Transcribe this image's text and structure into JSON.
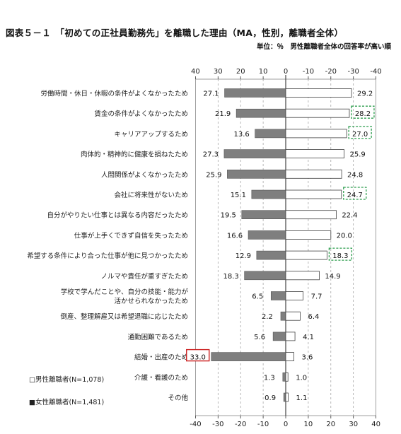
{
  "title": "図表５－１　「初めての正社員勤務先」を離職した理由（MA，性別，離職者全体）",
  "subtitle": "単位：％　男性離職者全体の回答率が高い順",
  "colors": {
    "female_bar": "#7f7f7f",
    "male_bar": "#ffffff",
    "bar_stroke": "#404040",
    "green_highlight": "#2e9e4f",
    "red_highlight": "#cc2222"
  },
  "chart_data": {
    "type": "bar",
    "orientation": "horizontal-butterfly",
    "categories": [
      "労働時間・休日・休暇の条件がよくなかったため",
      "賃金の条件がよくなかったため",
      "キャリアアップするため",
      "肉体的・精神的に健康を損ねたため",
      "人間関係がよくなかったため",
      "会社に将来性がないため",
      "自分がやりたい仕事とは異なる内容だったため",
      "仕事が上手くできず自信を失ったため",
      "希望する条件により合った仕事が他に見つかったため",
      "ノルマや責任が重すぎたため",
      "学校で学んだことや、自分の技能・能力が|活かせられなかったため",
      "倒産、整理解雇又は希望退職に応じたため",
      "通勤困難であるため",
      "結婚・出産のため",
      "介護・看護のため",
      "その他"
    ],
    "series": [
      {
        "name": "女性離職者(N=1,481)",
        "side": "left",
        "values": [
          27.1,
          21.9,
          13.6,
          27.3,
          25.9,
          15.1,
          19.5,
          16.6,
          12.9,
          18.3,
          6.5,
          2.2,
          5.6,
          33.0,
          1.3,
          0.9
        ],
        "labels": [
          "27.1",
          "21.9",
          "13.6",
          "27.3",
          "25.9",
          "15.1",
          "19.5",
          "16.6",
          "12.9",
          "18.3",
          "6.5",
          "2.2",
          "5.6",
          "33.0",
          "1.3",
          "0.9"
        ],
        "highlight_red": [
          13
        ]
      },
      {
        "name": "男性離職者(N=1,078)",
        "side": "right",
        "values": [
          29.2,
          28.2,
          27.0,
          25.9,
          24.8,
          24.7,
          22.4,
          20.0,
          18.3,
          14.9,
          7.7,
          6.4,
          4.1,
          3.6,
          1.0,
          1.1
        ],
        "labels": [
          "29.2",
          "28.2",
          "27.0",
          "25.9",
          "24.8",
          "24.7",
          "22.4",
          "20.0",
          "18.3",
          "14.9",
          "7.7",
          "6.4",
          "4.1",
          "3.6",
          "1.0",
          "1.1"
        ],
        "highlight_green": [
          1,
          2,
          5,
          8
        ]
      }
    ],
    "xlim": [
      -40,
      40
    ],
    "ticks": [
      -40,
      -30,
      -20,
      -10,
      0,
      10,
      20,
      30,
      40
    ],
    "top_tick_labels": [
      "40",
      "30",
      "20",
      "10",
      "0",
      "-10",
      "-20",
      "-30",
      "-40"
    ],
    "bottom_tick_labels": [
      "-40",
      "-30",
      "-20",
      "-10",
      "0",
      "10",
      "20",
      "30",
      "40"
    ],
    "grid": "vertical dashed",
    "legend": [
      {
        "marker": "□",
        "label": "男性離職者(N=1,078)"
      },
      {
        "marker": "■",
        "label": "女性離職者(N=1,481)"
      }
    ]
  }
}
